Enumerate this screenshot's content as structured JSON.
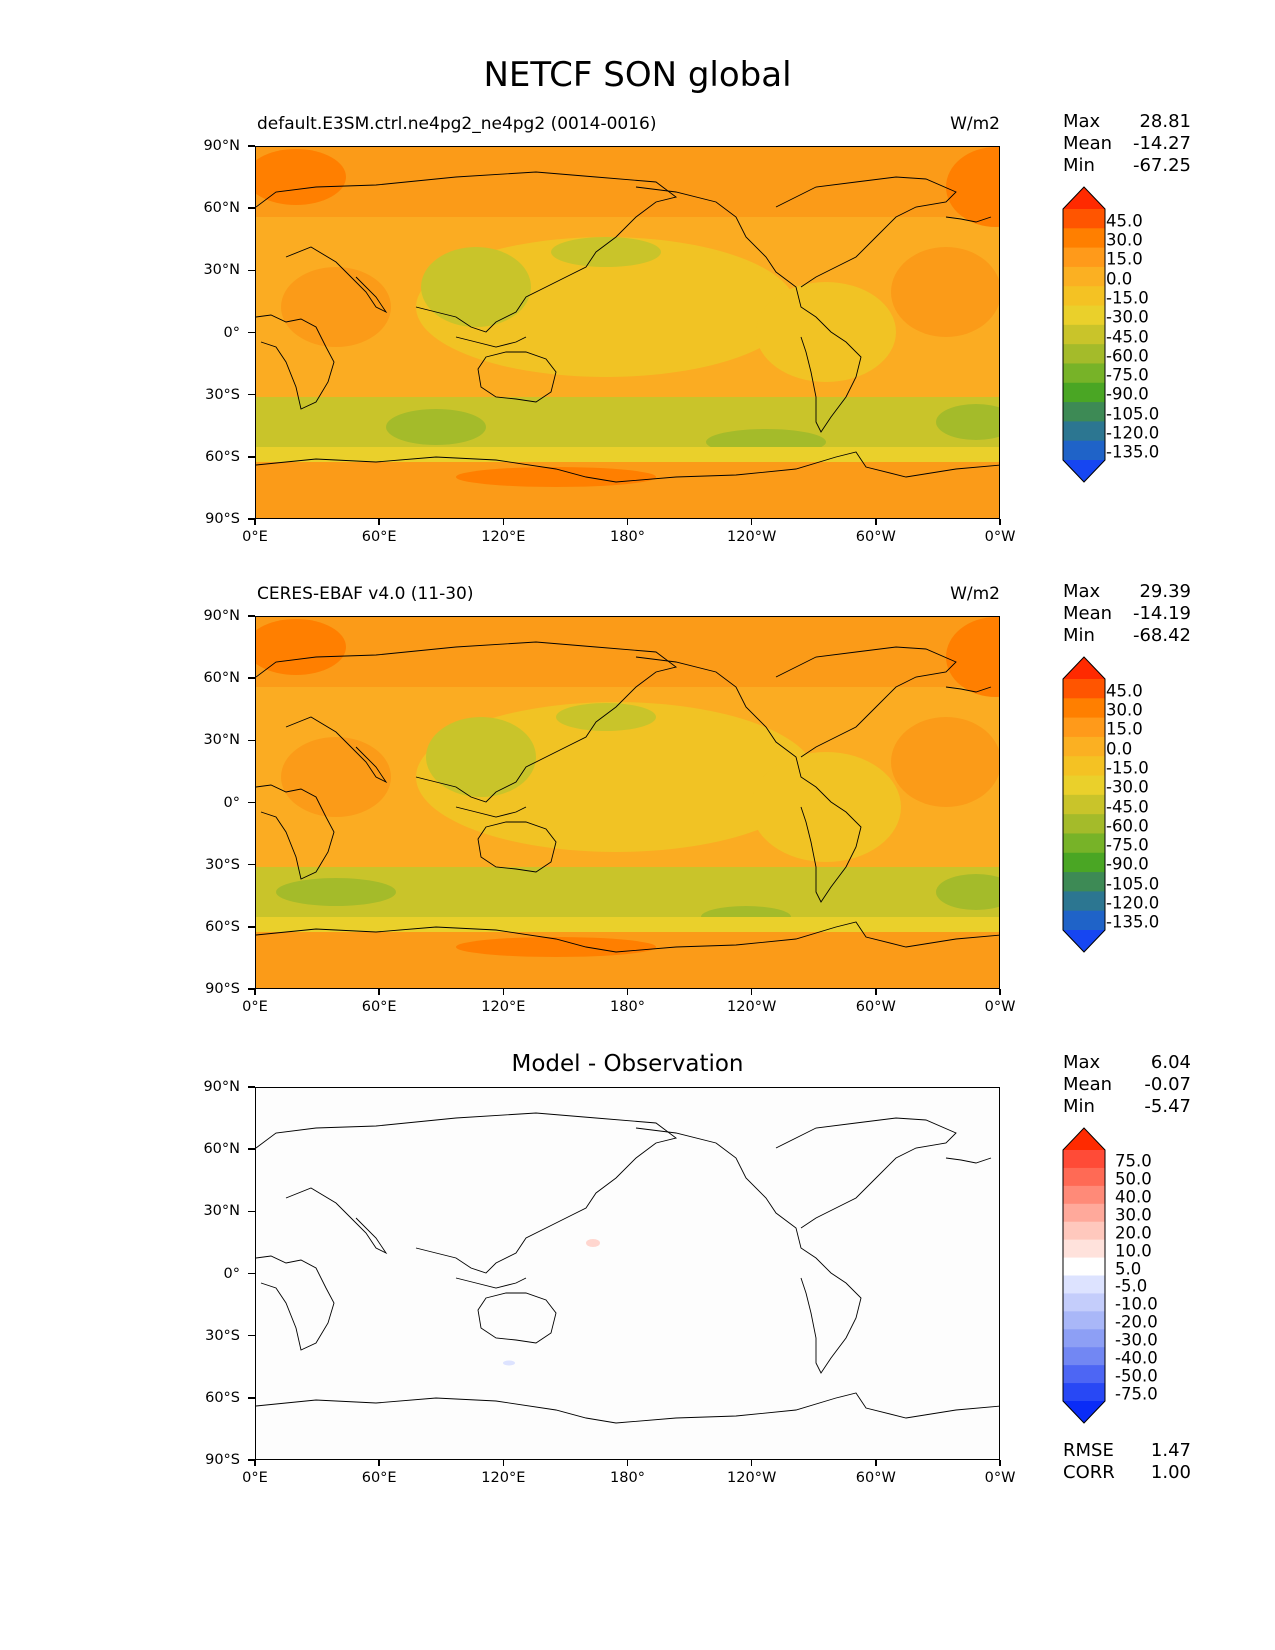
{
  "figure_title": "NETCF SON global",
  "lat_labels": [
    "90°N",
    "60°N",
    "30°N",
    "0°",
    "30°S",
    "60°S",
    "90°S"
  ],
  "lon_labels": [
    "0°E",
    "60°E",
    "120°E",
    "180°",
    "120°W",
    "60°W",
    "0°W"
  ],
  "panels": [
    {
      "left_title": "default.E3SM.ctrl.ne4pg2_ne4pg2 (0014-0016)",
      "units": "W/m2",
      "center_title": "",
      "stats": [
        {
          "label": "Max",
          "value": "28.81"
        },
        {
          "label": "Mean",
          "value": "-14.27"
        },
        {
          "label": "Min",
          "value": "-67.25"
        }
      ],
      "colorbar_labels": [
        "45.0",
        "30.0",
        "15.0",
        "0.0",
        "-15.0",
        "-30.0",
        "-45.0",
        "-60.0",
        "-75.0",
        "-90.0",
        "-105.0",
        "-120.0",
        "-135.0"
      ]
    },
    {
      "left_title": "CERES-EBAF v4.0 (11-30)",
      "units": "W/m2",
      "center_title": "",
      "stats": [
        {
          "label": "Max",
          "value": "29.39"
        },
        {
          "label": "Mean",
          "value": "-14.19"
        },
        {
          "label": "Min",
          "value": "-68.42"
        }
      ],
      "colorbar_labels": [
        "45.0",
        "30.0",
        "15.0",
        "0.0",
        "-15.0",
        "-30.0",
        "-45.0",
        "-60.0",
        "-75.0",
        "-90.0",
        "-105.0",
        "-120.0",
        "-135.0"
      ]
    },
    {
      "left_title": "",
      "units": "",
      "center_title": "Model - Observation",
      "stats": [
        {
          "label": "Max",
          "value": "6.04"
        },
        {
          "label": "Mean",
          "value": "-0.07"
        },
        {
          "label": "Min",
          "value": "-5.47"
        }
      ],
      "colorbar_labels": [
        "75.0",
        "50.0",
        "40.0",
        "30.0",
        "20.0",
        "10.0",
        "5.0",
        "-5.0",
        "-10.0",
        "-20.0",
        "-30.0",
        "-40.0",
        "-50.0",
        "-75.0"
      ],
      "bottom_stats": [
        {
          "label": "RMSE",
          "value": "1.47"
        },
        {
          "label": "CORR",
          "value": "1.00"
        }
      ]
    }
  ],
  "colors": {
    "field_colorbar": [
      "#ff2a00",
      "#ff5500",
      "#ff7f00",
      "#ff9a1a",
      "#fbb022",
      "#f4c223",
      "#ead02b",
      "#c9c42a",
      "#a4bb2a",
      "#77b328",
      "#4aa624",
      "#3d8a55",
      "#2c7691",
      "#1f63c8",
      "#1646f2"
    ],
    "diff_colorbar": [
      "#ff2a00",
      "#ff4b37",
      "#ff6a55",
      "#ff8a78",
      "#ffa99b",
      "#ffc8bd",
      "#ffe2dc",
      "#ffffff",
      "#dde3ff",
      "#c4cdfb",
      "#a9b7f8",
      "#8d9ff5",
      "#7287f3",
      "#4d66f4",
      "#2848f5",
      "#0a2cf7"
    ],
    "background_orange": "#fbab22",
    "land_outline": "#000000"
  }
}
